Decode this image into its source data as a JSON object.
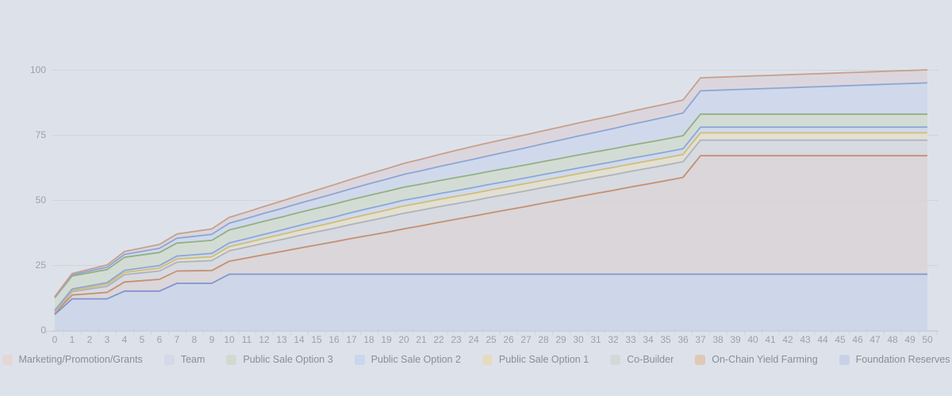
{
  "page": {
    "background": "#dde2ea",
    "grid_color": "#c9cfd9",
    "axis_label_color": "#9aa1ad",
    "legend_text_color": "#878e9a"
  },
  "chart_data": {
    "type": "area",
    "stacked": true,
    "title": "",
    "xlabel": "",
    "ylabel": "",
    "ylim": [
      0,
      100
    ],
    "yticks": [
      0,
      25,
      50,
      75,
      100
    ],
    "grid": true,
    "legend_position": "bottom",
    "x": [
      0,
      1,
      2,
      3,
      4,
      5,
      6,
      7,
      8,
      9,
      10,
      11,
      12,
      13,
      14,
      15,
      16,
      17,
      18,
      19,
      20,
      21,
      22,
      23,
      24,
      25,
      26,
      27,
      28,
      29,
      30,
      31,
      32,
      33,
      34,
      35,
      36,
      37,
      38,
      39,
      40,
      41,
      42,
      43,
      44,
      45,
      46,
      47,
      48,
      49,
      50
    ],
    "series": [
      {
        "name": "Foundation Reserves",
        "line_color": "#8095ce",
        "fill_color": "#ccd5e8",
        "legend_color": "#c9d1e8",
        "values": [
          6,
          12,
          12,
          12,
          15,
          15,
          15,
          18,
          18,
          18,
          21.5,
          21.5,
          21.5,
          21.5,
          21.5,
          21.5,
          21.5,
          21.5,
          21.5,
          21.5,
          21.5,
          21.5,
          21.5,
          21.5,
          21.5,
          21.5,
          21.5,
          21.5,
          21.5,
          21.5,
          21.5,
          21.5,
          21.5,
          21.5,
          21.5,
          21.5,
          21.5,
          21.5,
          21.5,
          21.5,
          21.5,
          21.5,
          21.5,
          21.5,
          21.5,
          21.5,
          21.5,
          21.5,
          21.5,
          21.5,
          21.5
        ]
      },
      {
        "name": "On-Chain Yield Farming",
        "line_color": "#c5906f",
        "fill_color": "#d9d5d8",
        "legend_color": "#dfc9b4",
        "values": [
          0.5,
          1.5,
          2,
          2.5,
          3.5,
          4,
          4.5,
          4.7,
          4.8,
          4.9,
          5,
          6.2,
          7.5,
          8.7,
          10,
          11.2,
          12.4,
          13.7,
          14.9,
          16.1,
          17.4,
          18.6,
          19.9,
          21.1,
          22.3,
          23.6,
          24.8,
          26,
          27.3,
          28.5,
          29.8,
          31,
          32.2,
          33.5,
          34.7,
          35.9,
          37.2,
          45.5,
          45.5,
          45.5,
          45.5,
          45.5,
          45.5,
          45.5,
          45.5,
          45.5,
          45.5,
          45.5,
          45.5,
          45.5,
          45.5
        ]
      },
      {
        "name": "Co-Builder",
        "line_color": "#aeb3bb",
        "fill_color": "#d6d9e0",
        "legend_color": "#d5d8db",
        "values": [
          0.3,
          1.3,
          1.8,
          2.3,
          2.8,
          3,
          3.2,
          3.4,
          3.6,
          3.8,
          4,
          4.2,
          4.4,
          4.6,
          4.8,
          5,
          5.2,
          5.4,
          5.6,
          5.8,
          6,
          6,
          6,
          6,
          6,
          6,
          6,
          6,
          6,
          6,
          6,
          6,
          6,
          6,
          6,
          6,
          6,
          6,
          6,
          6,
          6,
          6,
          6,
          6,
          6,
          6,
          6,
          6,
          6,
          6,
          6
        ]
      },
      {
        "name": "Public Sale Option 1",
        "line_color": "#d2bd74",
        "fill_color": "#e2e0d0",
        "legend_color": "#e3dcc2",
        "values": [
          0.4,
          0.52,
          0.64,
          0.76,
          0.88,
          1,
          1.12,
          1.24,
          1.36,
          1.48,
          1.6,
          1.72,
          1.84,
          1.96,
          2.08,
          2.2,
          2.32,
          2.44,
          2.56,
          2.68,
          2.8,
          2.8,
          2.8,
          2.8,
          2.8,
          2.8,
          2.8,
          2.8,
          2.8,
          2.8,
          2.8,
          2.8,
          2.8,
          2.8,
          2.8,
          2.8,
          2.8,
          2.8,
          2.8,
          2.8,
          2.8,
          2.8,
          2.8,
          2.8,
          2.8,
          2.8,
          2.8,
          2.8,
          2.8,
          2.8,
          2.8
        ]
      },
      {
        "name": "Public Sale Option 2",
        "line_color": "#8ca7d6",
        "fill_color": "#cdd9ec",
        "legend_color": "#c9d6ec",
        "values": [
          0.4,
          0.5,
          0.6,
          0.7,
          0.8,
          0.9,
          1,
          1.1,
          1.2,
          1.3,
          1.4,
          1.5,
          1.6,
          1.7,
          1.8,
          1.9,
          2,
          2.1,
          2.2,
          2.2,
          2.2,
          2.2,
          2.2,
          2.2,
          2.2,
          2.2,
          2.2,
          2.2,
          2.2,
          2.2,
          2.2,
          2.2,
          2.2,
          2.2,
          2.2,
          2.2,
          2.2,
          2.2,
          2.2,
          2.2,
          2.2,
          2.2,
          2.2,
          2.2,
          2.2,
          2.2,
          2.2,
          2.2,
          2.2,
          2.2,
          2.2
        ]
      },
      {
        "name": "Public Sale Option 3",
        "line_color": "#93b083",
        "fill_color": "#d1dbd1",
        "legend_color": "#d1dacf",
        "values": [
          4.8,
          5,
          5,
          5,
          5,
          5,
          5,
          5,
          5,
          5,
          5,
          5,
          5,
          5,
          5,
          5,
          5,
          5,
          5,
          5,
          5,
          5,
          5,
          5,
          5,
          5,
          5,
          5,
          5,
          5,
          5,
          5,
          5,
          5,
          5,
          5,
          5,
          5,
          5,
          5,
          5,
          5,
          5,
          5,
          5,
          5,
          5,
          5,
          5,
          5,
          5
        ]
      },
      {
        "name": "Team",
        "line_color": "#8ea6d2",
        "fill_color": "#cdd8ea",
        "legend_color": "#d2dae8",
        "values": [
          0.2,
          0.44,
          0.67,
          0.91,
          1.14,
          1.38,
          1.62,
          1.85,
          2.09,
          2.32,
          2.56,
          2.8,
          3.03,
          3.27,
          3.5,
          3.74,
          3.98,
          4.21,
          4.45,
          4.68,
          4.92,
          5.16,
          5.39,
          5.63,
          5.86,
          6.1,
          6.34,
          6.57,
          6.81,
          7.04,
          7.28,
          7.52,
          7.75,
          7.99,
          8.22,
          8.46,
          8.7,
          8.93,
          9.17,
          9.4,
          9.64,
          9.88,
          10.11,
          10.35,
          10.58,
          10.82,
          11.06,
          11.29,
          11.53,
          11.76,
          12
        ]
      },
      {
        "name": "Marketing/Promotion/Grants",
        "line_color": "#c8a08c",
        "fill_color": "#dad5dc",
        "legend_color": "#e4d8d4",
        "values": [
          0.3,
          0.5,
          0.69,
          0.89,
          1.08,
          1.28,
          1.48,
          1.67,
          1.87,
          2.06,
          2.26,
          2.46,
          2.65,
          2.85,
          3.04,
          3.24,
          3.44,
          3.63,
          3.83,
          4.02,
          4.22,
          4.42,
          4.61,
          4.81,
          5,
          5,
          5,
          5,
          5,
          5,
          5,
          5,
          5,
          5,
          5,
          5,
          5,
          5,
          5,
          5,
          5,
          5,
          5,
          5,
          5,
          5,
          5,
          5,
          5,
          5,
          5
        ]
      }
    ],
    "legend_order": [
      "Marketing/Promotion/Grants",
      "Team",
      "Public Sale Option 3",
      "Public Sale Option 2",
      "Public Sale Option 1",
      "Co-Builder",
      "On-Chain Yield Farming",
      "Foundation Reserves"
    ]
  }
}
